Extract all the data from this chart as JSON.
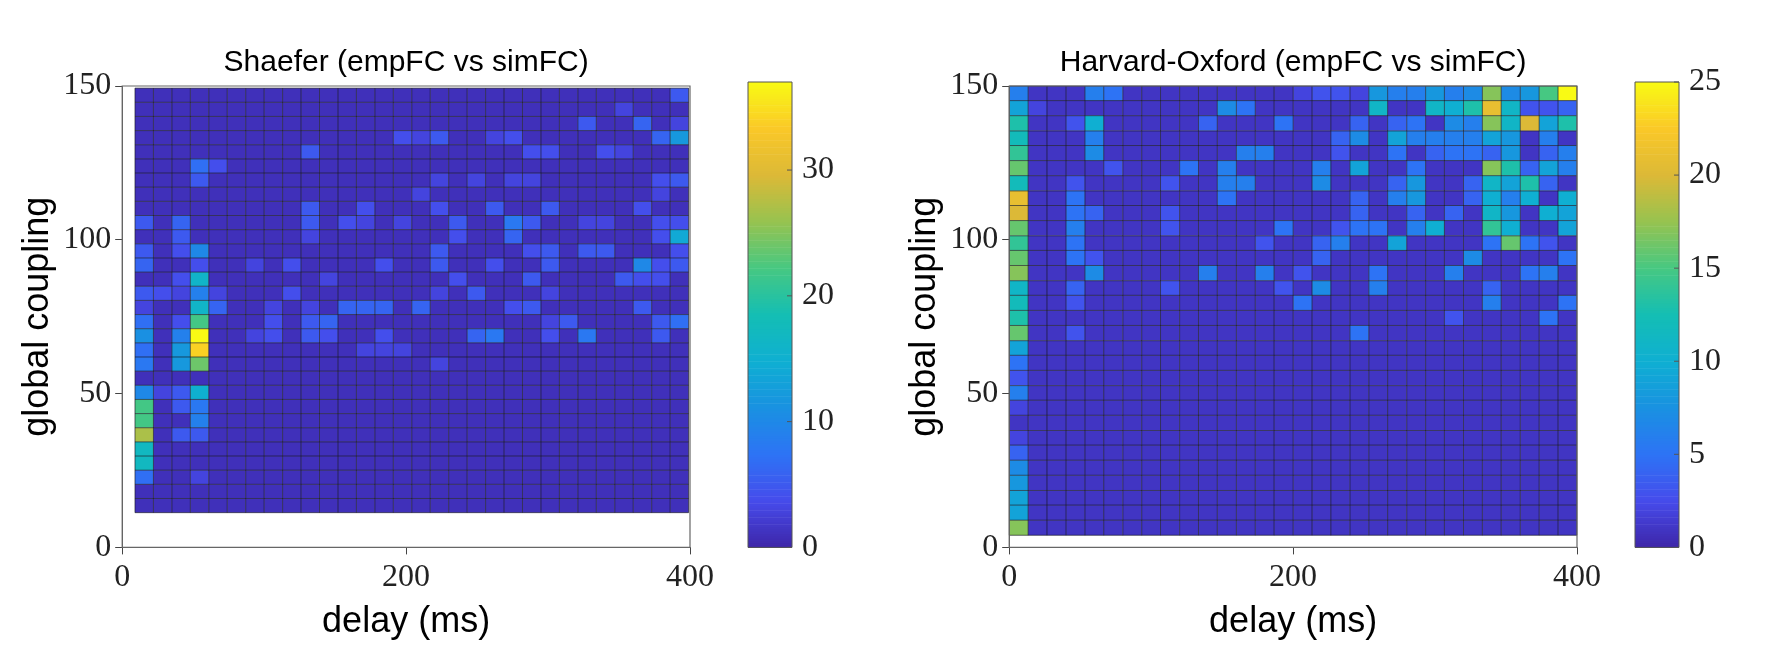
{
  "chart_data": [
    {
      "type": "heatmap",
      "title": "Shaefer (empFC vs simFC)",
      "xlabel": "delay (ms)",
      "ylabel": "global coupling",
      "xlim": [
        0,
        400
      ],
      "xticks": [
        0,
        200,
        400
      ],
      "ylim": [
        0,
        150
      ],
      "yticks": [
        0,
        50,
        100,
        150
      ],
      "clim": [
        0,
        37
      ],
      "cticks": [
        0,
        10,
        20,
        30
      ],
      "x": [
        15.5,
        28.5,
        41.5,
        54.5,
        67.5,
        80.5,
        93.5,
        106.5,
        119.5,
        132.5,
        145.5,
        158.5,
        171.5,
        184.5,
        197.5,
        210.5,
        223.5,
        236.5,
        249.5,
        262.5,
        275.5,
        288.5,
        301.5,
        314.5,
        327.5,
        340.5,
        353.5,
        366.5,
        379.5,
        392.5
      ],
      "y": [
        147.0,
        142.4,
        137.8,
        133.2,
        128.6,
        124.0,
        119.4,
        114.8,
        110.2,
        105.6,
        101.0,
        96.4,
        91.8,
        87.2,
        82.6,
        78.0,
        73.4,
        68.8,
        64.2,
        59.6,
        55.0,
        50.4,
        45.8,
        41.2,
        36.6,
        32.0,
        27.4,
        22.8,
        18.2,
        13.6
      ],
      "cells": [
        [
          1,
          1,
          1,
          1,
          1,
          1,
          1,
          1,
          1,
          1,
          1,
          1,
          1,
          1,
          1,
          1,
          1,
          1,
          1,
          1,
          1,
          1,
          1,
          1,
          1,
          1,
          1,
          1,
          1,
          5
        ],
        [
          1,
          1,
          1,
          1,
          1,
          1,
          1,
          1,
          1,
          1,
          1,
          1,
          1,
          1,
          1,
          1,
          1,
          1,
          1,
          1,
          1,
          1,
          1,
          1,
          1,
          1,
          3,
          1,
          1,
          1
        ],
        [
          1,
          1,
          1,
          1,
          1,
          1,
          1,
          1,
          1,
          1,
          1,
          1,
          1,
          1,
          1,
          1,
          1,
          1,
          1,
          1,
          1,
          1,
          1,
          1,
          5,
          1,
          1,
          6,
          1,
          3
        ],
        [
          1,
          1,
          1,
          1,
          1,
          1,
          1,
          1,
          1,
          1,
          1,
          1,
          1,
          1,
          4,
          3,
          5,
          1,
          1,
          3,
          4,
          1,
          1,
          1,
          1,
          1,
          1,
          1,
          6,
          12
        ],
        [
          1,
          1,
          1,
          1,
          1,
          1,
          1,
          1,
          1,
          5,
          1,
          1,
          1,
          1,
          1,
          1,
          1,
          1,
          1,
          1,
          1,
          4,
          4,
          1,
          1,
          4,
          3,
          1,
          1,
          1
        ],
        [
          1,
          1,
          1,
          7,
          4,
          1,
          1,
          1,
          1,
          1,
          1,
          1,
          1,
          1,
          1,
          1,
          1,
          1,
          1,
          1,
          1,
          1,
          1,
          1,
          1,
          1,
          1,
          1,
          1,
          1
        ],
        [
          1,
          1,
          1,
          5,
          1,
          1,
          1,
          1,
          1,
          1,
          1,
          1,
          1,
          1,
          1,
          1,
          3,
          1,
          3,
          1,
          3,
          3,
          1,
          1,
          1,
          1,
          1,
          1,
          4,
          5
        ],
        [
          1,
          1,
          1,
          1,
          1,
          1,
          1,
          1,
          1,
          1,
          1,
          1,
          1,
          1,
          1,
          3,
          1,
          1,
          1,
          1,
          1,
          1,
          1,
          1,
          1,
          1,
          1,
          1,
          3,
          1
        ],
        [
          1,
          1,
          1,
          1,
          1,
          1,
          1,
          1,
          1,
          5,
          1,
          1,
          4,
          1,
          1,
          1,
          4,
          1,
          1,
          5,
          1,
          1,
          5,
          1,
          1,
          1,
          1,
          4,
          1,
          1
        ],
        [
          5,
          1,
          6,
          1,
          1,
          1,
          1,
          1,
          1,
          5,
          1,
          4,
          3,
          1,
          3,
          1,
          1,
          5,
          1,
          1,
          8,
          5,
          1,
          1,
          3,
          3,
          1,
          1,
          4,
          4
        ],
        [
          1,
          1,
          5,
          1,
          1,
          1,
          1,
          1,
          1,
          3,
          1,
          1,
          1,
          1,
          1,
          1,
          1,
          4,
          1,
          1,
          6,
          1,
          1,
          1,
          1,
          1,
          1,
          1,
          4,
          14
        ],
        [
          5,
          1,
          4,
          10,
          1,
          1,
          1,
          1,
          1,
          1,
          1,
          1,
          1,
          1,
          1,
          1,
          5,
          1,
          1,
          1,
          1,
          4,
          5,
          1,
          5,
          5,
          1,
          1,
          1,
          4
        ],
        [
          6,
          1,
          1,
          4,
          1,
          1,
          3,
          1,
          4,
          1,
          1,
          1,
          1,
          4,
          1,
          1,
          5,
          1,
          1,
          4,
          1,
          1,
          5,
          1,
          1,
          1,
          1,
          10,
          4,
          5
        ],
        [
          1,
          1,
          4,
          16,
          1,
          1,
          1,
          1,
          1,
          1,
          3,
          1,
          1,
          1,
          1,
          1,
          1,
          4,
          1,
          1,
          1,
          5,
          1,
          1,
          1,
          1,
          5,
          4,
          4,
          1
        ],
        [
          5,
          4,
          3,
          9,
          3,
          1,
          1,
          1,
          4,
          1,
          1,
          1,
          1,
          1,
          1,
          1,
          3,
          1,
          5,
          1,
          1,
          1,
          3,
          1,
          1,
          1,
          1,
          1,
          1,
          1
        ],
        [
          3,
          1,
          1,
          16,
          6,
          1,
          1,
          3,
          1,
          3,
          1,
          6,
          6,
          6,
          1,
          6,
          1,
          1,
          1,
          1,
          4,
          5,
          1,
          1,
          1,
          1,
          1,
          5,
          1,
          1
        ],
        [
          7,
          1,
          4,
          22,
          1,
          1,
          1,
          4,
          1,
          5,
          6,
          1,
          1,
          1,
          1,
          1,
          1,
          1,
          1,
          1,
          1,
          1,
          3,
          5,
          1,
          1,
          1,
          1,
          5,
          7
        ],
        [
          11,
          1,
          9,
          37,
          1,
          1,
          3,
          4,
          1,
          5,
          4,
          1,
          1,
          4,
          1,
          1,
          1,
          1,
          6,
          8,
          1,
          1,
          4,
          1,
          8,
          1,
          1,
          1,
          5,
          1
        ],
        [
          7,
          1,
          12,
          34,
          1,
          1,
          1,
          1,
          1,
          1,
          1,
          1,
          3,
          3,
          3,
          1,
          1,
          1,
          1,
          1,
          1,
          1,
          1,
          1,
          1,
          1,
          1,
          1,
          1,
          1
        ],
        [
          8,
          1,
          12,
          24,
          1,
          1,
          1,
          1,
          1,
          1,
          1,
          1,
          1,
          1,
          1,
          1,
          3,
          1,
          1,
          1,
          1,
          1,
          1,
          1,
          1,
          1,
          1,
          1,
          1,
          1
        ],
        [
          1,
          1,
          1,
          1,
          1,
          1,
          1,
          1,
          1,
          1,
          1,
          1,
          1,
          1,
          1,
          1,
          1,
          1,
          1,
          1,
          1,
          1,
          1,
          1,
          1,
          1,
          1,
          1,
          1,
          1
        ],
        [
          10,
          3,
          5,
          15,
          1,
          1,
          1,
          1,
          1,
          1,
          1,
          1,
          1,
          1,
          1,
          1,
          1,
          1,
          1,
          1,
          1,
          1,
          1,
          1,
          1,
          1,
          1,
          1,
          1,
          1
        ],
        [
          22,
          1,
          5,
          8,
          1,
          1,
          1,
          1,
          1,
          1,
          1,
          1,
          1,
          1,
          1,
          1,
          1,
          1,
          1,
          1,
          1,
          1,
          1,
          1,
          1,
          1,
          1,
          1,
          1,
          1
        ],
        [
          22,
          1,
          1,
          9,
          1,
          1,
          1,
          1,
          1,
          1,
          1,
          1,
          1,
          1,
          1,
          1,
          1,
          1,
          1,
          1,
          1,
          1,
          1,
          1,
          1,
          1,
          1,
          1,
          1,
          1
        ],
        [
          27,
          1,
          5,
          5,
          1,
          1,
          1,
          1,
          1,
          1,
          1,
          1,
          1,
          1,
          1,
          1,
          1,
          1,
          1,
          1,
          1,
          1,
          1,
          1,
          1,
          1,
          1,
          1,
          1,
          1
        ],
        [
          17,
          1,
          1,
          1,
          1,
          1,
          1,
          1,
          1,
          1,
          1,
          1,
          1,
          1,
          1,
          1,
          1,
          1,
          1,
          1,
          1,
          1,
          1,
          1,
          1,
          1,
          1,
          1,
          1,
          1
        ],
        [
          17,
          1,
          1,
          1,
          1,
          1,
          1,
          1,
          1,
          1,
          1,
          1,
          1,
          1,
          1,
          1,
          1,
          1,
          1,
          1,
          1,
          1,
          1,
          1,
          1,
          1,
          1,
          1,
          1,
          1
        ],
        [
          7,
          1,
          1,
          3,
          1,
          1,
          1,
          1,
          1,
          1,
          1,
          1,
          1,
          1,
          1,
          1,
          1,
          1,
          1,
          1,
          1,
          1,
          1,
          1,
          1,
          1,
          1,
          1,
          1,
          1
        ],
        [
          1,
          1,
          1,
          1,
          1,
          1,
          1,
          1,
          1,
          1,
          1,
          1,
          1,
          1,
          1,
          1,
          1,
          1,
          1,
          1,
          1,
          1,
          1,
          1,
          1,
          1,
          1,
          1,
          1,
          1
        ],
        [
          1,
          1,
          1,
          1,
          1,
          1,
          1,
          1,
          1,
          1,
          1,
          1,
          1,
          1,
          1,
          1,
          1,
          1,
          1,
          1,
          1,
          1,
          1,
          1,
          1,
          1,
          1,
          1,
          1,
          1
        ]
      ]
    },
    {
      "type": "heatmap",
      "title": "Harvard-Oxford (empFC vs simFC)",
      "xlabel": "delay (ms)",
      "ylabel": "global coupling",
      "xlim": [
        0,
        400
      ],
      "xticks": [
        0,
        200,
        400
      ],
      "ylim": [
        0,
        150
      ],
      "yticks": [
        0,
        50,
        100,
        150
      ],
      "clim": [
        0,
        25
      ],
      "cticks": [
        0,
        5,
        10,
        15,
        20,
        25
      ],
      "x": [
        6.7,
        20.0,
        33.3,
        46.7,
        60.0,
        73.3,
        86.7,
        100.0,
        113.3,
        126.7,
        140.0,
        153.3,
        166.7,
        180.0,
        193.3,
        206.7,
        220.0,
        233.3,
        246.7,
        260.0,
        273.3,
        286.7,
        300.0,
        313.3,
        326.7,
        340.0,
        353.3,
        366.7,
        380.0,
        393.3
      ],
      "y": [
        147.6,
        142.8,
        137.9,
        133.0,
        128.2,
        123.3,
        118.4,
        113.5,
        108.7,
        103.8,
        98.9,
        94.1,
        89.2,
        84.3,
        79.5,
        74.6,
        69.7,
        64.8,
        60.0,
        55.1,
        50.2,
        45.4,
        40.5,
        35.6,
        30.8,
        25.9,
        21.0,
        16.1,
        11.3,
        6.4
      ],
      "cells": [
        [
          6,
          1,
          1,
          1,
          6,
          5,
          1,
          1,
          1,
          1,
          1,
          1,
          1,
          1,
          1,
          2,
          3,
          3,
          2,
          8,
          6,
          6,
          8,
          6,
          7,
          17,
          7,
          8,
          15,
          25
        ],
        [
          9,
          2,
          1,
          1,
          1,
          1,
          1,
          1,
          1,
          1,
          1,
          7,
          5,
          1,
          1,
          1,
          1,
          1,
          1,
          11,
          1,
          1,
          11,
          10,
          13,
          21,
          11,
          3,
          3,
          4
        ],
        [
          13,
          1,
          1,
          3,
          10,
          1,
          1,
          1,
          1,
          1,
          4,
          1,
          1,
          1,
          5,
          1,
          1,
          1,
          4,
          1,
          4,
          5,
          1,
          7,
          6,
          17,
          11,
          20,
          9,
          13
        ],
        [
          12,
          1,
          1,
          1,
          6,
          1,
          1,
          1,
          1,
          1,
          1,
          1,
          1,
          1,
          1,
          1,
          1,
          4,
          7,
          1,
          9,
          6,
          6,
          6,
          6,
          9,
          8,
          1,
          6,
          1
        ],
        [
          14,
          1,
          1,
          1,
          7,
          1,
          1,
          1,
          1,
          1,
          1,
          1,
          6,
          6,
          1,
          1,
          1,
          3,
          1,
          1,
          5,
          1,
          4,
          5,
          5,
          4,
          8,
          1,
          4,
          6
        ],
        [
          16,
          1,
          1,
          1,
          1,
          3,
          1,
          1,
          1,
          5,
          1,
          6,
          1,
          1,
          1,
          1,
          6,
          1,
          9,
          1,
          1,
          5,
          1,
          1,
          1,
          17,
          13,
          4,
          9,
          6
        ],
        [
          12,
          1,
          1,
          3,
          1,
          1,
          1,
          1,
          3,
          1,
          1,
          6,
          6,
          1,
          1,
          1,
          7,
          1,
          1,
          1,
          4,
          8,
          1,
          1,
          4,
          11,
          9,
          13,
          4,
          1
        ],
        [
          21,
          1,
          1,
          5,
          1,
          1,
          1,
          1,
          1,
          1,
          1,
          5,
          1,
          1,
          1,
          1,
          1,
          1,
          4,
          1,
          6,
          8,
          1,
          1,
          4,
          10,
          6,
          10,
          1,
          10
        ],
        [
          20,
          1,
          1,
          5,
          4,
          1,
          1,
          1,
          3,
          1,
          1,
          1,
          1,
          1,
          1,
          1,
          1,
          1,
          4,
          1,
          1,
          4,
          1,
          4,
          1,
          11,
          8,
          1,
          10,
          9
        ],
        [
          16,
          1,
          1,
          6,
          1,
          1,
          1,
          1,
          3,
          1,
          1,
          1,
          1,
          1,
          5,
          1,
          1,
          3,
          5,
          5,
          1,
          6,
          10,
          1,
          1,
          14,
          10,
          1,
          1,
          9
        ],
        [
          14,
          1,
          1,
          5,
          1,
          1,
          1,
          1,
          1,
          1,
          1,
          1,
          1,
          3,
          1,
          1,
          4,
          6,
          1,
          1,
          9,
          1,
          1,
          1,
          1,
          5,
          16,
          5,
          3,
          1
        ],
        [
          16,
          1,
          1,
          5,
          3,
          1,
          1,
          1,
          1,
          1,
          1,
          1,
          1,
          1,
          1,
          1,
          4,
          1,
          1,
          1,
          1,
          1,
          1,
          1,
          7,
          1,
          1,
          1,
          1,
          5
        ],
        [
          17,
          1,
          1,
          1,
          7,
          1,
          1,
          1,
          1,
          1,
          6,
          1,
          1,
          6,
          1,
          3,
          1,
          1,
          1,
          5,
          1,
          1,
          1,
          6,
          1,
          1,
          1,
          5,
          6,
          1
        ],
        [
          11,
          1,
          1,
          4,
          1,
          1,
          1,
          1,
          3,
          1,
          1,
          1,
          1,
          1,
          3,
          1,
          7,
          1,
          1,
          6,
          1,
          1,
          1,
          1,
          1,
          4,
          1,
          1,
          1,
          1
        ],
        [
          12,
          1,
          1,
          3,
          1,
          1,
          1,
          1,
          1,
          1,
          1,
          1,
          1,
          1,
          1,
          5,
          1,
          1,
          1,
          1,
          1,
          1,
          1,
          1,
          1,
          6,
          1,
          1,
          1,
          5
        ],
        [
          13,
          1,
          1,
          1,
          1,
          1,
          1,
          1,
          1,
          1,
          1,
          1,
          1,
          1,
          1,
          1,
          1,
          1,
          1,
          1,
          1,
          1,
          1,
          3,
          1,
          1,
          1,
          1,
          5,
          1
        ],
        [
          16,
          1,
          1,
          3,
          1,
          1,
          1,
          1,
          1,
          1,
          1,
          1,
          1,
          1,
          1,
          1,
          1,
          1,
          5,
          1,
          1,
          1,
          1,
          1,
          1,
          1,
          1,
          1,
          1,
          1
        ],
        [
          9,
          1,
          1,
          1,
          1,
          1,
          1,
          1,
          1,
          1,
          1,
          1,
          1,
          1,
          1,
          1,
          1,
          1,
          1,
          1,
          1,
          1,
          1,
          1,
          1,
          1,
          1,
          1,
          1,
          1
        ],
        [
          5,
          1,
          1,
          1,
          1,
          1,
          1,
          1,
          1,
          1,
          1,
          1,
          1,
          1,
          1,
          1,
          1,
          1,
          1,
          1,
          1,
          1,
          1,
          1,
          1,
          1,
          1,
          1,
          1,
          1
        ],
        [
          3,
          1,
          1,
          1,
          1,
          1,
          1,
          1,
          1,
          1,
          1,
          1,
          1,
          1,
          1,
          1,
          1,
          1,
          1,
          1,
          1,
          1,
          1,
          1,
          1,
          1,
          1,
          1,
          1,
          1
        ],
        [
          6,
          1,
          1,
          1,
          1,
          1,
          1,
          1,
          1,
          1,
          1,
          1,
          1,
          1,
          1,
          1,
          1,
          1,
          1,
          1,
          1,
          1,
          1,
          1,
          1,
          1,
          1,
          1,
          1,
          1
        ],
        [
          2,
          1,
          1,
          1,
          1,
          1,
          1,
          1,
          1,
          1,
          1,
          1,
          1,
          1,
          1,
          1,
          1,
          1,
          1,
          1,
          1,
          1,
          1,
          1,
          1,
          1,
          1,
          1,
          1,
          1
        ],
        [
          1,
          1,
          1,
          1,
          1,
          1,
          1,
          1,
          1,
          1,
          1,
          1,
          1,
          1,
          1,
          1,
          1,
          1,
          1,
          1,
          1,
          1,
          1,
          1,
          1,
          1,
          1,
          1,
          1,
          1
        ],
        [
          2,
          1,
          1,
          1,
          1,
          1,
          1,
          1,
          1,
          1,
          1,
          1,
          1,
          1,
          1,
          1,
          1,
          1,
          1,
          1,
          1,
          1,
          1,
          1,
          1,
          1,
          1,
          1,
          1,
          1
        ],
        [
          4,
          1,
          1,
          1,
          1,
          1,
          1,
          1,
          1,
          1,
          1,
          1,
          1,
          1,
          1,
          1,
          1,
          1,
          1,
          1,
          1,
          1,
          1,
          1,
          1,
          1,
          1,
          1,
          1,
          1
        ],
        [
          7,
          1,
          1,
          1,
          1,
          1,
          1,
          1,
          1,
          1,
          1,
          1,
          1,
          1,
          1,
          1,
          1,
          1,
          1,
          1,
          1,
          1,
          1,
          1,
          1,
          1,
          1,
          1,
          1,
          1
        ],
        [
          8,
          1,
          1,
          1,
          1,
          1,
          1,
          1,
          1,
          1,
          1,
          1,
          1,
          1,
          1,
          1,
          1,
          1,
          1,
          1,
          1,
          1,
          1,
          1,
          1,
          1,
          1,
          1,
          1,
          1
        ],
        [
          9,
          1,
          1,
          1,
          1,
          1,
          1,
          1,
          1,
          1,
          1,
          1,
          1,
          1,
          1,
          1,
          1,
          1,
          1,
          1,
          1,
          1,
          1,
          1,
          1,
          1,
          1,
          1,
          1,
          1
        ],
        [
          9,
          1,
          1,
          1,
          1,
          1,
          1,
          1,
          1,
          1,
          1,
          1,
          1,
          1,
          1,
          1,
          1,
          1,
          1,
          1,
          1,
          1,
          1,
          1,
          1,
          1,
          1,
          1,
          1,
          1
        ],
        [
          17,
          1,
          1,
          1,
          1,
          1,
          1,
          1,
          1,
          1,
          1,
          1,
          1,
          1,
          1,
          1,
          1,
          1,
          1,
          1,
          1,
          1,
          1,
          1,
          1,
          1,
          1,
          1,
          1,
          1
        ]
      ]
    }
  ]
}
